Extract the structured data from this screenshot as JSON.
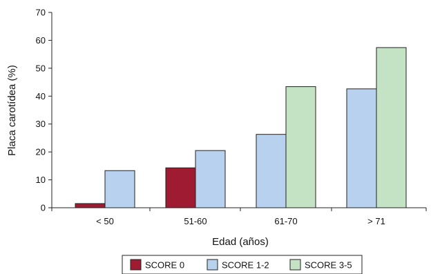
{
  "chart_data": {
    "type": "bar",
    "title": "",
    "xlabel": "Edad (años)",
    "ylabel": "Placa carotídea (%)",
    "ylim": [
      0,
      70
    ],
    "yticks": [
      0,
      10,
      20,
      30,
      40,
      50,
      60,
      70
    ],
    "grid": false,
    "legend_position": "bottom",
    "categories": [
      "< 50",
      "51-60",
      "61-70",
      "> 71"
    ],
    "series": [
      {
        "name": "SCORE 0",
        "color": "#9e1b32",
        "values": [
          1.5,
          14.3,
          null,
          null
        ]
      },
      {
        "name": "SCORE 1-2",
        "color": "#b7d1ee",
        "values": [
          13.3,
          20.5,
          26.3,
          42.6
        ]
      },
      {
        "name": "SCORE 3-5",
        "color": "#c4e3c4",
        "values": [
          null,
          null,
          43.4,
          57.4
        ]
      }
    ]
  }
}
